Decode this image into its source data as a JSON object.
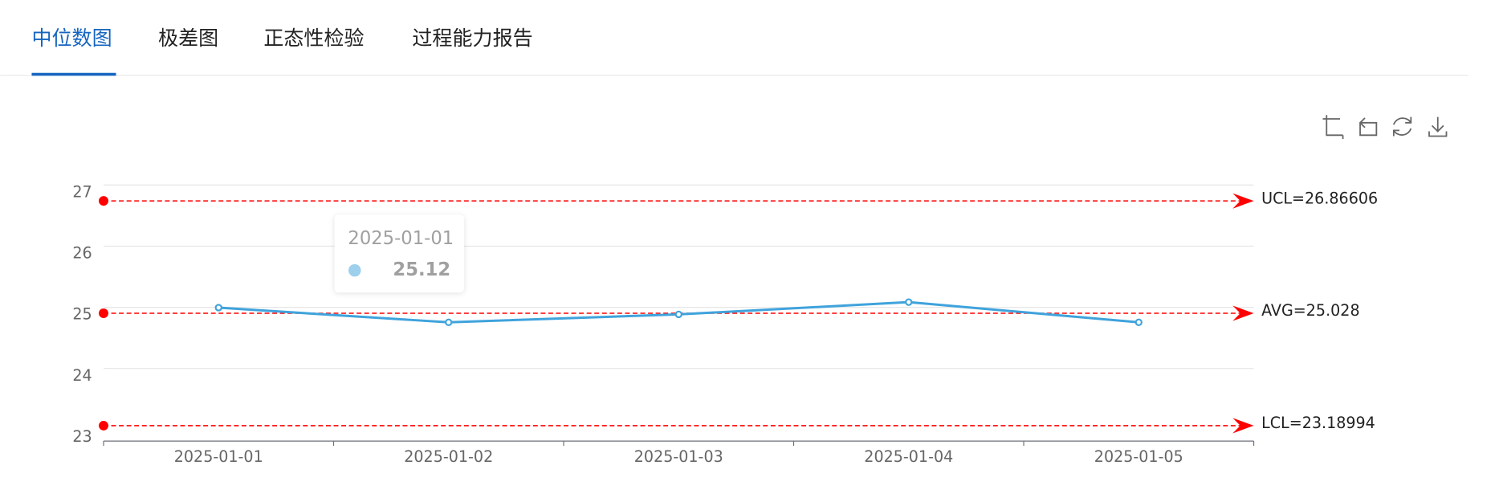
{
  "tabs": [
    "中位数图",
    "极差图",
    "正态性检验",
    "过程能力报告"
  ],
  "active_tab": 0,
  "chart_data": {
    "type": "line",
    "categories": [
      "2025-01-01",
      "2025-01-02",
      "2025-01-03",
      "2025-01-04",
      "2025-01-05"
    ],
    "series": [
      {
        "name": "中位数",
        "color": "#3fa3dc",
        "values": [
          25.12,
          24.88,
          25.01,
          25.21,
          24.88
        ]
      }
    ],
    "ylim": [
      23,
      27
    ],
    "yticks": [
      23,
      24,
      25,
      26,
      27
    ],
    "grid": true,
    "control_lines": [
      {
        "value": 26.86606,
        "label": "UCL=26.86606",
        "color": "#ff0000"
      },
      {
        "value": 25.028,
        "label": "AVG=25.028",
        "color": "#ff0000"
      },
      {
        "value": 23.18994,
        "label": "LCL=23.18994",
        "color": "#ff0000"
      }
    ],
    "tooltip": {
      "index": 0,
      "color": "#9dd0ec"
    }
  }
}
